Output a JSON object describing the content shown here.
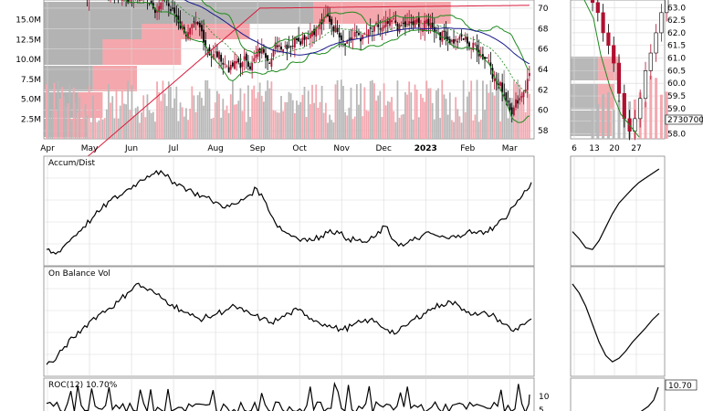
{
  "colors": {
    "up": "#b01030",
    "down": "#000000",
    "upBar": "#f4a8b0",
    "downBar": "#b8b8b8",
    "band": "#1f8a1f",
    "ma50": "#1a1a8c",
    "ma200": "#d81a3a",
    "profileRed": "#f08a90",
    "profileGray": "#9a9a9a"
  },
  "chart_data": [
    {
      "type": "candlestick",
      "panel": "price",
      "x_tick_labels": [
        "Apr",
        "May",
        "Jun",
        "Jul",
        "Aug",
        "Sep",
        "Oct",
        "Nov",
        "Dec",
        "2023",
        "Feb",
        "Mar"
      ],
      "y_tick_labels": [
        "58",
        "60",
        "62",
        "64",
        "66",
        "68",
        "70"
      ],
      "ylim": [
        57.2,
        70.8
      ],
      "volume_tick_labels": [
        "2.5M",
        "5.0M",
        "7.5M",
        "10.0M",
        "12.5M",
        "15.0M"
      ],
      "volume_ylim": [
        0,
        17.5
      ],
      "overlays": [
        "bollinger-upper",
        "bollinger-middle",
        "bollinger-lower",
        "sma-50",
        "sma-200",
        "volume-by-price"
      ],
      "inset_x_tick_labels": [
        "6",
        "13",
        "20",
        "27"
      ],
      "inset_y_tick_labels": [
        "58.0",
        "58.5",
        "59.0",
        "59.5",
        "60.0",
        "60.5",
        "61.0",
        "61.5",
        "62.0",
        "62.5",
        "63.0"
      ],
      "inset_ylim": [
        57.8,
        63.3
      ],
      "volume_label": "2730700"
    },
    {
      "type": "line",
      "panel": "accum-dist",
      "title": "Accum/Dist",
      "series": [
        {
          "name": "Accum/Dist",
          "values": [
            0.1,
            0.05,
            0.15,
            0.25,
            0.35,
            0.45,
            0.55,
            0.65,
            0.7,
            0.78,
            0.85,
            0.92,
            0.98,
            0.92,
            0.85,
            0.8,
            0.74,
            0.7,
            0.65,
            0.6,
            0.58,
            0.62,
            0.7,
            0.78,
            0.62,
            0.4,
            0.3,
            0.25,
            0.22,
            0.2,
            0.25,
            0.32,
            0.28,
            0.22,
            0.2,
            0.18,
            0.25,
            0.36,
            0.2,
            0.14,
            0.2,
            0.25,
            0.28,
            0.24,
            0.22,
            0.26,
            0.3,
            0.28,
            0.3,
            0.36,
            0.44,
            0.58,
            0.7,
            0.85
          ]
        }
      ],
      "inset": [
        0.3,
        0.22,
        0.12,
        0.1,
        0.2,
        0.35,
        0.5,
        0.62,
        0.7,
        0.78,
        0.85,
        0.9,
        0.95,
        1.0
      ]
    },
    {
      "type": "line",
      "panel": "on-balance-volume",
      "title": "On Balance Vol",
      "series": [
        {
          "name": "On Balance Vol",
          "values": [
            0.05,
            0.1,
            0.25,
            0.35,
            0.45,
            0.55,
            0.62,
            0.68,
            0.75,
            0.85,
            0.95,
            0.9,
            0.85,
            0.78,
            0.72,
            0.66,
            0.6,
            0.56,
            0.58,
            0.62,
            0.66,
            0.7,
            0.64,
            0.6,
            0.56,
            0.52,
            0.56,
            0.62,
            0.66,
            0.6,
            0.54,
            0.5,
            0.46,
            0.44,
            0.48,
            0.52,
            0.55,
            0.5,
            0.44,
            0.4,
            0.48,
            0.56,
            0.62,
            0.68,
            0.72,
            0.75,
            0.7,
            0.64,
            0.6,
            0.62,
            0.58,
            0.5,
            0.42,
            0.5,
            0.56
          ]
        }
      ],
      "inset": [
        0.95,
        0.85,
        0.7,
        0.5,
        0.3,
        0.15,
        0.08,
        0.12,
        0.2,
        0.3,
        0.38,
        0.46,
        0.55,
        0.62
      ]
    },
    {
      "type": "line",
      "panel": "roc",
      "title": "ROC(12)",
      "value_label": "10.70%",
      "y_tick_labels": [
        "10",
        "5"
      ],
      "ylim": [
        -5,
        15
      ],
      "inset_value_label": "10.70"
    }
  ]
}
